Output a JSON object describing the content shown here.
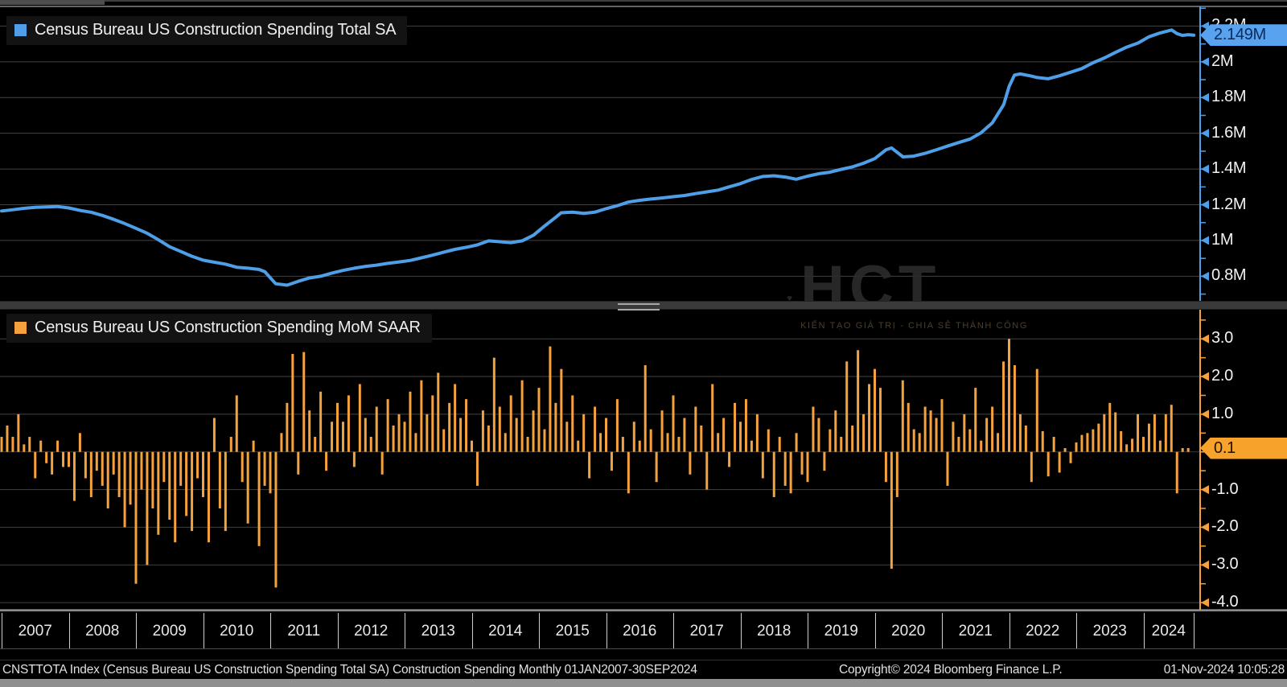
{
  "legend": {
    "top_label": "Census Bureau US Construction Spending Total SA",
    "bottom_label": "Census Bureau US Construction Spending MoM SAAR"
  },
  "colors": {
    "blue": "#4f9fe8",
    "blue_tag_bg": "#58a2f0",
    "orange": "#f5a13d",
    "orange_tag_bg": "#f7a22b",
    "grid": "#434343",
    "zero_grid": "#3a3a3a",
    "panel_border": "#868686",
    "tick_text": "#f2f2f2",
    "background": "#000000"
  },
  "xaxis": {
    "years": [
      "2007",
      "2008",
      "2009",
      "2010",
      "2011",
      "2012",
      "2013",
      "2014",
      "2015",
      "2016",
      "2017",
      "2018",
      "2019",
      "2020",
      "2021",
      "2022",
      "2023",
      "2024"
    ]
  },
  "watermark": {
    "title": "HCT",
    "tagline": "KIẾN TẠO GIÁ TRỊ - CHIA SẺ THÀNH CÔNG"
  },
  "statusbar": {
    "left": "CNSTTOTA Index (Census Bureau US Construction Spending Total SA) Construction Spending  Monthly 01JAN2007-30SEP2024",
    "center": "Copyright© 2024 Bloomberg Finance L.P.",
    "right": "01-Nov-2024 10:05:28"
  },
  "chart_data": [
    {
      "type": "line",
      "title": "Census Bureau US Construction Spending Total SA",
      "series_name": "CNSTTOTA Index",
      "color": "#4f9fe8",
      "x_unit": "decimal_year",
      "x_range": [
        2007.0,
        2024.75
      ],
      "ylim": [
        0.653,
        2.31
      ],
      "grid": true,
      "legend_position": "top-left",
      "yticks": [
        {
          "value": 2.2,
          "label": "2.2M"
        },
        {
          "value": 2.0,
          "label": "2M"
        },
        {
          "value": 1.8,
          "label": "1.8M"
        },
        {
          "value": 1.6,
          "label": "1.6M"
        },
        {
          "value": 1.4,
          "label": "1.4M"
        },
        {
          "value": 1.2,
          "label": "1.2M"
        },
        {
          "value": 1.0,
          "label": "1M"
        },
        {
          "value": 0.8,
          "label": "0.8M"
        }
      ],
      "minor_tick_step": 0.1,
      "last_value": 2.149,
      "last_label": "2.149M",
      "points": [
        [
          2007.0,
          1.165
        ],
        [
          2007.17,
          1.172
        ],
        [
          2007.33,
          1.18
        ],
        [
          2007.5,
          1.185
        ],
        [
          2007.67,
          1.188
        ],
        [
          2007.83,
          1.19
        ],
        [
          2008.0,
          1.182
        ],
        [
          2008.17,
          1.168
        ],
        [
          2008.33,
          1.158
        ],
        [
          2008.5,
          1.14
        ],
        [
          2008.67,
          1.118
        ],
        [
          2008.83,
          1.095
        ],
        [
          2009.0,
          1.068
        ],
        [
          2009.17,
          1.04
        ],
        [
          2009.33,
          1.005
        ],
        [
          2009.5,
          0.965
        ],
        [
          2009.67,
          0.938
        ],
        [
          2009.83,
          0.912
        ],
        [
          2010.0,
          0.89
        ],
        [
          2010.17,
          0.878
        ],
        [
          2010.33,
          0.868
        ],
        [
          2010.5,
          0.85
        ],
        [
          2010.67,
          0.845
        ],
        [
          2010.83,
          0.838
        ],
        [
          2010.92,
          0.825
        ],
        [
          2011.08,
          0.758
        ],
        [
          2011.25,
          0.75
        ],
        [
          2011.42,
          0.772
        ],
        [
          2011.58,
          0.79
        ],
        [
          2011.75,
          0.8
        ],
        [
          2011.92,
          0.818
        ],
        [
          2012.08,
          0.832
        ],
        [
          2012.25,
          0.845
        ],
        [
          2012.42,
          0.855
        ],
        [
          2012.58,
          0.862
        ],
        [
          2012.75,
          0.872
        ],
        [
          2012.92,
          0.88
        ],
        [
          2013.08,
          0.888
        ],
        [
          2013.25,
          0.903
        ],
        [
          2013.42,
          0.918
        ],
        [
          2013.58,
          0.934
        ],
        [
          2013.75,
          0.95
        ],
        [
          2013.92,
          0.962
        ],
        [
          2014.08,
          0.975
        ],
        [
          2014.25,
          0.998
        ],
        [
          2014.42,
          0.993
        ],
        [
          2014.58,
          0.988
        ],
        [
          2014.75,
          0.998
        ],
        [
          2014.92,
          1.03
        ],
        [
          2015.08,
          1.08
        ],
        [
          2015.25,
          1.13
        ],
        [
          2015.33,
          1.155
        ],
        [
          2015.5,
          1.158
        ],
        [
          2015.67,
          1.152
        ],
        [
          2015.83,
          1.158
        ],
        [
          2016.0,
          1.178
        ],
        [
          2016.17,
          1.195
        ],
        [
          2016.33,
          1.215
        ],
        [
          2016.5,
          1.225
        ],
        [
          2016.67,
          1.232
        ],
        [
          2016.83,
          1.238
        ],
        [
          2017.0,
          1.245
        ],
        [
          2017.17,
          1.252
        ],
        [
          2017.33,
          1.262
        ],
        [
          2017.5,
          1.272
        ],
        [
          2017.67,
          1.282
        ],
        [
          2017.83,
          1.3
        ],
        [
          2018.0,
          1.318
        ],
        [
          2018.17,
          1.342
        ],
        [
          2018.33,
          1.358
        ],
        [
          2018.5,
          1.362
        ],
        [
          2018.67,
          1.355
        ],
        [
          2018.83,
          1.343
        ],
        [
          2019.0,
          1.36
        ],
        [
          2019.17,
          1.374
        ],
        [
          2019.33,
          1.382
        ],
        [
          2019.5,
          1.398
        ],
        [
          2019.67,
          1.412
        ],
        [
          2019.83,
          1.432
        ],
        [
          2020.0,
          1.458
        ],
        [
          2020.17,
          1.508
        ],
        [
          2020.25,
          1.518
        ],
        [
          2020.42,
          1.468
        ],
        [
          2020.58,
          1.472
        ],
        [
          2020.75,
          1.488
        ],
        [
          2020.92,
          1.508
        ],
        [
          2021.08,
          1.528
        ],
        [
          2021.25,
          1.548
        ],
        [
          2021.42,
          1.568
        ],
        [
          2021.58,
          1.602
        ],
        [
          2021.75,
          1.658
        ],
        [
          2021.92,
          1.76
        ],
        [
          2022.0,
          1.862
        ],
        [
          2022.08,
          1.926
        ],
        [
          2022.17,
          1.932
        ],
        [
          2022.33,
          1.92
        ],
        [
          2022.42,
          1.912
        ],
        [
          2022.58,
          1.905
        ],
        [
          2022.75,
          1.922
        ],
        [
          2022.92,
          1.942
        ],
        [
          2023.08,
          1.962
        ],
        [
          2023.25,
          1.995
        ],
        [
          2023.42,
          2.022
        ],
        [
          2023.58,
          2.052
        ],
        [
          2023.75,
          2.082
        ],
        [
          2023.92,
          2.105
        ],
        [
          2024.08,
          2.14
        ],
        [
          2024.25,
          2.162
        ],
        [
          2024.42,
          2.178
        ],
        [
          2024.5,
          2.158
        ],
        [
          2024.58,
          2.148
        ],
        [
          2024.67,
          2.152
        ],
        [
          2024.75,
          2.149
        ]
      ]
    },
    {
      "type": "bar",
      "title": "Census Bureau US Construction Spending MoM SAAR",
      "color": "#f5a13d",
      "x_unit": "month",
      "start": "2007-01",
      "end": "2024-09",
      "ylim": [
        -4.19,
        3.88
      ],
      "grid": true,
      "legend_position": "top-left",
      "yticks": [
        {
          "value": 3.0,
          "label": "3.0"
        },
        {
          "value": 2.0,
          "label": "2.0"
        },
        {
          "value": 1.0,
          "label": "1.0"
        },
        {
          "value": -1.0,
          "label": "-1.0"
        },
        {
          "value": -2.0,
          "label": "-2.0"
        },
        {
          "value": -3.0,
          "label": "-3.0"
        },
        {
          "value": -4.0,
          "label": "-4.0"
        }
      ],
      "minor_tick_step": 0.5,
      "last_value": 0.1,
      "last_label": "0.1",
      "values": [
        0.4,
        0.7,
        0.4,
        1.0,
        0.2,
        0.4,
        -0.7,
        0.3,
        -0.3,
        -0.6,
        0.3,
        -0.4,
        -0.4,
        -1.3,
        0.5,
        -0.7,
        -1.2,
        -0.5,
        -0.9,
        -1.5,
        -0.6,
        -1.2,
        -2.0,
        -1.4,
        -3.5,
        -1.0,
        -3.0,
        -1.5,
        -2.2,
        -0.8,
        -1.8,
        -2.4,
        -0.9,
        -1.7,
        -2.1,
        -0.7,
        -1.2,
        -2.4,
        0.9,
        -1.5,
        -2.1,
        0.4,
        1.5,
        -0.8,
        -1.9,
        0.3,
        -2.5,
        -0.9,
        -1.1,
        -3.6,
        0.5,
        1.3,
        2.6,
        -0.6,
        2.65,
        1.1,
        0.4,
        1.6,
        -0.5,
        0.8,
        1.3,
        0.8,
        1.5,
        -0.4,
        1.8,
        0.9,
        0.4,
        1.2,
        -0.6,
        1.4,
        0.7,
        1.0,
        0.8,
        1.6,
        0.5,
        1.9,
        1.0,
        1.5,
        2.1,
        0.6,
        1.3,
        1.8,
        0.9,
        1.4,
        0.3,
        -0.9,
        1.1,
        0.7,
        2.5,
        1.2,
        0.5,
        1.5,
        0.9,
        1.9,
        0.4,
        1.1,
        1.7,
        0.6,
        2.8,
        1.3,
        2.2,
        0.8,
        1.5,
        0.3,
        1.0,
        -0.7,
        1.2,
        0.5,
        0.9,
        -0.5,
        1.4,
        0.4,
        -1.1,
        0.8,
        0.3,
        2.3,
        0.6,
        -0.8,
        1.1,
        0.5,
        1.5,
        0.4,
        0.9,
        -0.6,
        1.2,
        0.7,
        -1.0,
        1.8,
        0.5,
        0.9,
        -0.4,
        1.3,
        0.8,
        1.4,
        0.3,
        1.0,
        -0.7,
        0.6,
        -1.2,
        0.4,
        -0.9,
        -1.1,
        0.5,
        -0.6,
        -0.8,
        1.2,
        0.9,
        -0.5,
        0.6,
        1.1,
        0.4,
        2.4,
        0.7,
        2.7,
        1.0,
        1.8,
        2.2,
        1.7,
        -0.8,
        -3.1,
        -1.2,
        1.9,
        1.3,
        0.6,
        0.5,
        1.2,
        1.1,
        0.9,
        1.4,
        -0.9,
        0.8,
        0.4,
        1.0,
        0.6,
        1.7,
        0.3,
        0.9,
        1.2,
        0.5,
        2.4,
        3.0,
        2.3,
        1.0,
        0.7,
        -0.8,
        2.2,
        0.55,
        -0.65,
        0.4,
        -0.55,
        0.1,
        -0.3,
        0.25,
        0.45,
        0.5,
        0.6,
        0.75,
        1.0,
        1.3,
        1.05,
        0.55,
        0.2,
        0.35,
        1.0,
        0.4,
        0.75,
        1.0,
        0.3,
        1.0,
        1.25,
        -1.1,
        0.1,
        0.1
      ]
    }
  ]
}
